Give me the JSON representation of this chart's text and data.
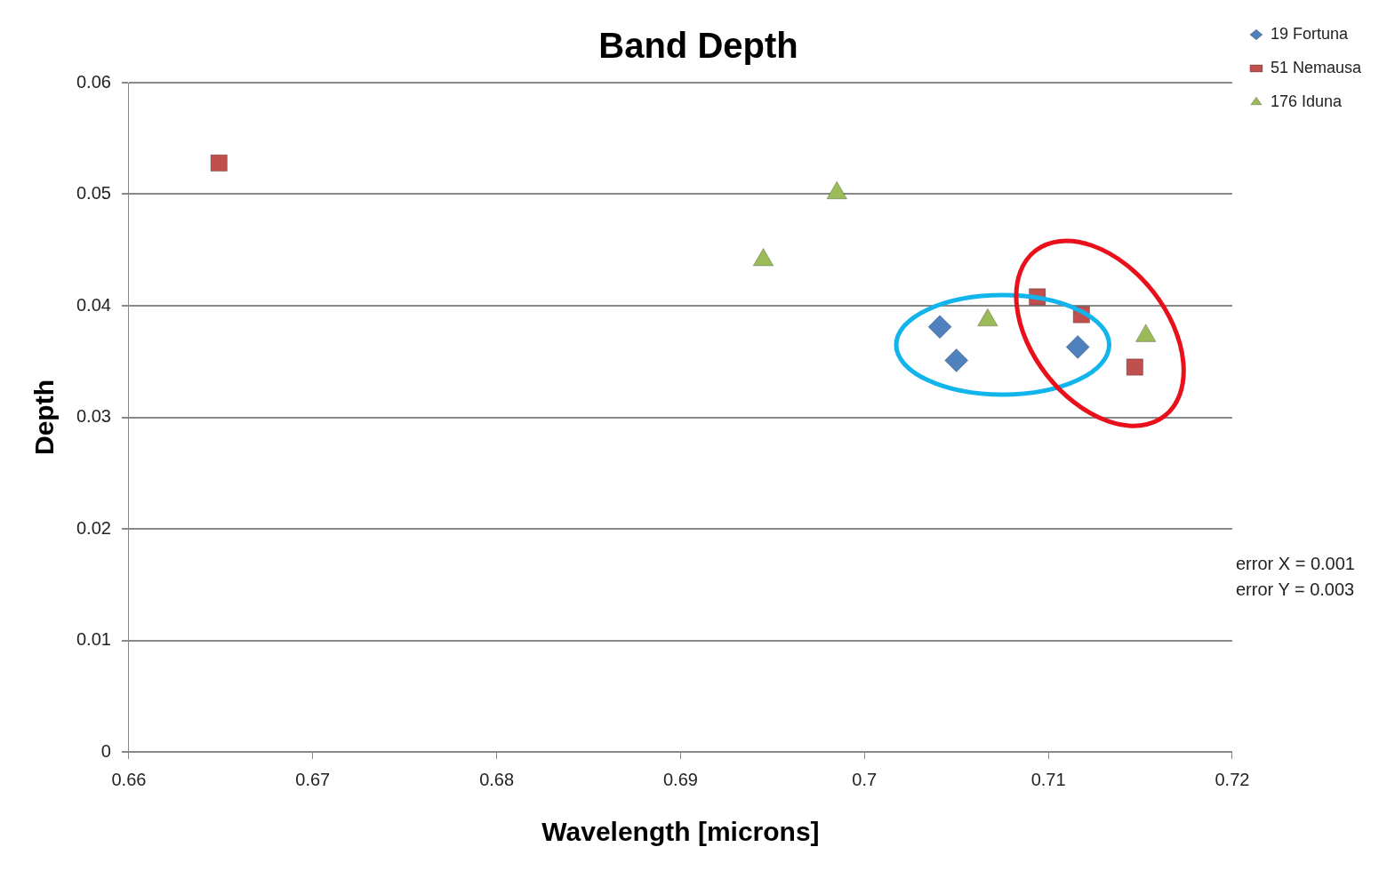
{
  "chart_data": {
    "type": "scatter",
    "title": "Band Depth",
    "xlabel": "Wavelength [microns]",
    "ylabel": "Depth",
    "xlim": [
      0.66,
      0.72
    ],
    "xticks": [
      0.66,
      0.67,
      0.68,
      0.69,
      0.7,
      0.71,
      0.72
    ],
    "ylim": [
      0,
      0.06
    ],
    "yticks": [
      0,
      0.01,
      0.02,
      0.03,
      0.04,
      0.05,
      0.06
    ],
    "grid": "y",
    "legend": "right",
    "series": [
      {
        "name": "19 Fortuna",
        "color": "#4f81bd",
        "marker": "diamond",
        "x": [
          0.7041,
          0.705,
          0.7116
        ],
        "values": [
          0.0381,
          0.0351,
          0.0363
        ]
      },
      {
        "name": "51 Nemausa",
        "color": "#c0504d",
        "marker": "square",
        "x": [
          0.6649,
          0.7094,
          0.7118,
          0.7147
        ],
        "values": [
          0.0528,
          0.0408,
          0.0392,
          0.0345
        ]
      },
      {
        "name": "176 Iduna",
        "color": "#9bbb59",
        "marker": "triangle",
        "x": [
          0.6945,
          0.6985,
          0.7067,
          0.7153
        ],
        "values": [
          0.0441,
          0.0501,
          0.0387,
          0.0373
        ]
      }
    ],
    "annotations": [
      "error X = 0.001",
      "error Y = 0.003"
    ]
  }
}
